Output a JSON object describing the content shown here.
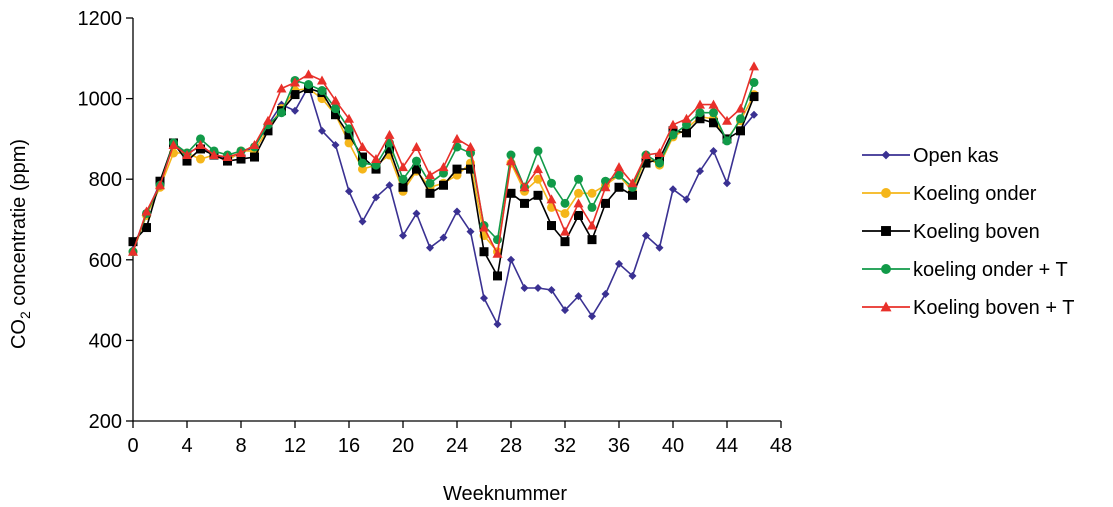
{
  "chart_data": {
    "type": "line",
    "xlabel": "Weeknummer",
    "ylabel": "CO",
    "ylabel_sub": "2",
    "ylabel_rest": " concentratie  (ppm)",
    "xlim": [
      0,
      48
    ],
    "ylim": [
      200,
      1200
    ],
    "xticks": [
      0,
      4,
      8,
      12,
      16,
      20,
      24,
      28,
      32,
      36,
      40,
      44,
      48
    ],
    "yticks": [
      200,
      400,
      600,
      800,
      1000,
      1200
    ],
    "grid": false,
    "legend_position": "right",
    "x": [
      0,
      1,
      2,
      3,
      4,
      5,
      6,
      7,
      8,
      9,
      10,
      11,
      12,
      13,
      14,
      15,
      16,
      17,
      18,
      19,
      20,
      21,
      22,
      23,
      24,
      25,
      26,
      27,
      28,
      29,
      30,
      31,
      32,
      33,
      34,
      35,
      36,
      37,
      38,
      39,
      40,
      41,
      42,
      43,
      44,
      45,
      46
    ],
    "series": [
      {
        "name": "Open kas",
        "color": "#3a3192",
        "marker": "diamond",
        "values": [
          625,
          715,
          790,
          885,
          865,
          880,
          860,
          850,
          865,
          880,
          935,
          985,
          970,
          1030,
          920,
          885,
          770,
          695,
          755,
          785,
          660,
          715,
          630,
          655,
          720,
          670,
          505,
          440,
          600,
          530,
          530,
          525,
          475,
          510,
          460,
          515,
          590,
          560,
          660,
          630,
          775,
          750,
          820,
          870,
          790,
          920,
          960
        ]
      },
      {
        "name": "Koeling onder",
        "color": "#f5b61a",
        "marker": "circle",
        "values": [
          620,
          710,
          780,
          865,
          865,
          850,
          860,
          845,
          870,
          870,
          925,
          975,
          1020,
          1025,
          1000,
          960,
          890,
          825,
          835,
          860,
          770,
          820,
          780,
          790,
          810,
          840,
          660,
          620,
          840,
          770,
          800,
          730,
          715,
          765,
          765,
          785,
          810,
          770,
          855,
          835,
          905,
          925,
          955,
          950,
          900,
          945,
          1010
        ]
      },
      {
        "name": "Koeling boven",
        "color": "#000000",
        "marker": "square",
        "values": [
          645,
          680,
          795,
          890,
          845,
          875,
          860,
          845,
          850,
          855,
          920,
          970,
          1010,
          1025,
          1015,
          960,
          910,
          855,
          825,
          875,
          780,
          825,
          765,
          785,
          825,
          825,
          620,
          560,
          765,
          740,
          760,
          685,
          645,
          710,
          650,
          740,
          780,
          760,
          840,
          850,
          920,
          915,
          950,
          940,
          900,
          920,
          1005
        ]
      },
      {
        "name": "koeling onder + T",
        "color": "#119a48",
        "marker": "circle",
        "values": [
          620,
          715,
          785,
          890,
          865,
          900,
          870,
          860,
          870,
          880,
          935,
          965,
          1045,
          1035,
          1020,
          975,
          925,
          840,
          835,
          890,
          800,
          845,
          790,
          815,
          880,
          865,
          685,
          650,
          860,
          780,
          870,
          790,
          740,
          800,
          730,
          795,
          810,
          780,
          860,
          840,
          910,
          935,
          965,
          965,
          895,
          950,
          1040
        ]
      },
      {
        "name": "Koeling boven + T",
        "color": "#e8302a",
        "marker": "triangle",
        "values": [
          620,
          720,
          785,
          885,
          860,
          885,
          860,
          855,
          865,
          885,
          945,
          1025,
          1040,
          1060,
          1045,
          995,
          950,
          880,
          850,
          910,
          830,
          880,
          810,
          830,
          900,
          880,
          680,
          615,
          845,
          780,
          825,
          750,
          670,
          740,
          685,
          780,
          830,
          790,
          860,
          865,
          935,
          950,
          985,
          985,
          945,
          975,
          1080
        ]
      }
    ]
  }
}
